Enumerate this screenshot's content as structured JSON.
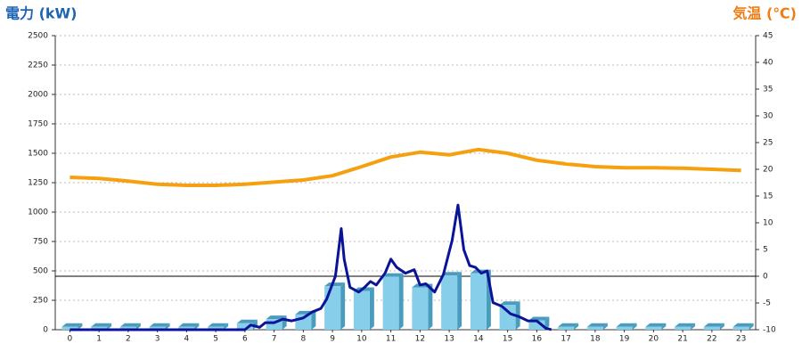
{
  "chart_data": {
    "type": "combo",
    "y_axis_title": "電力 (kW)",
    "y2_axis_title": "気温 (℃)",
    "categories": [
      "0",
      "1",
      "2",
      "3",
      "4",
      "5",
      "6",
      "7",
      "8",
      "9",
      "10",
      "11",
      "12",
      "13",
      "14",
      "15",
      "16",
      "17",
      "18",
      "19",
      "20",
      "21",
      "22",
      "23"
    ],
    "ylim": [
      0,
      2500
    ],
    "yticks": [
      0,
      250,
      500,
      750,
      1000,
      1250,
      1500,
      1750,
      2000,
      2250,
      2500
    ],
    "y2lim": [
      -10,
      45
    ],
    "y2ticks": [
      -10,
      -5,
      0,
      5,
      10,
      15,
      20,
      25,
      30,
      35,
      40,
      45
    ],
    "grid": true,
    "reference_line_y2": 0,
    "series": [
      {
        "type": "bar",
        "color": "#87ceeb",
        "side_color": "#4a9cbf",
        "values": [
          25,
          25,
          25,
          25,
          25,
          25,
          55,
          90,
          130,
          370,
          330,
          450,
          360,
          460,
          480,
          210,
          80,
          25,
          25,
          25,
          25,
          25,
          25,
          25
        ]
      },
      {
        "type": "line",
        "color": "#0a1496",
        "x": [
          0,
          1,
          2,
          3,
          4,
          5,
          6,
          6.2,
          6.5,
          6.7,
          7,
          7.3,
          7.6,
          8,
          8.3,
          8.6,
          8.8,
          9,
          9.1,
          9.3,
          9.4,
          9.6,
          9.9,
          10.1,
          10.3,
          10.5,
          10.8,
          11,
          11.2,
          11.5,
          11.8,
          12,
          12.2,
          12.5,
          12.8,
          13.1,
          13.3,
          13.5,
          13.7,
          13.9,
          14.1,
          14.3,
          14.5,
          14.8,
          15.1,
          15.4,
          15.7,
          16,
          16.3,
          16.5
        ],
        "values": [
          0,
          0,
          0,
          0,
          0,
          0,
          0,
          40,
          20,
          60,
          60,
          90,
          75,
          100,
          150,
          180,
          260,
          390,
          455,
          860,
          600,
          360,
          320,
          360,
          410,
          380,
          480,
          600,
          530,
          480,
          510,
          380,
          390,
          320,
          470,
          760,
          1060,
          680,
          545,
          530,
          480,
          500,
          230,
          200,
          135,
          110,
          75,
          75,
          15,
          0
        ]
      },
      {
        "type": "line",
        "axis": "y2",
        "color": "#f5a00f",
        "values": [
          18.5,
          18.3,
          17.8,
          17.2,
          17,
          17,
          17.2,
          17.6,
          18,
          18.8,
          20.5,
          22.3,
          23.2,
          22.7,
          23.7,
          23,
          21.7,
          21,
          20.5,
          20.3,
          20.3,
          20.2,
          20,
          19.8
        ]
      }
    ]
  }
}
